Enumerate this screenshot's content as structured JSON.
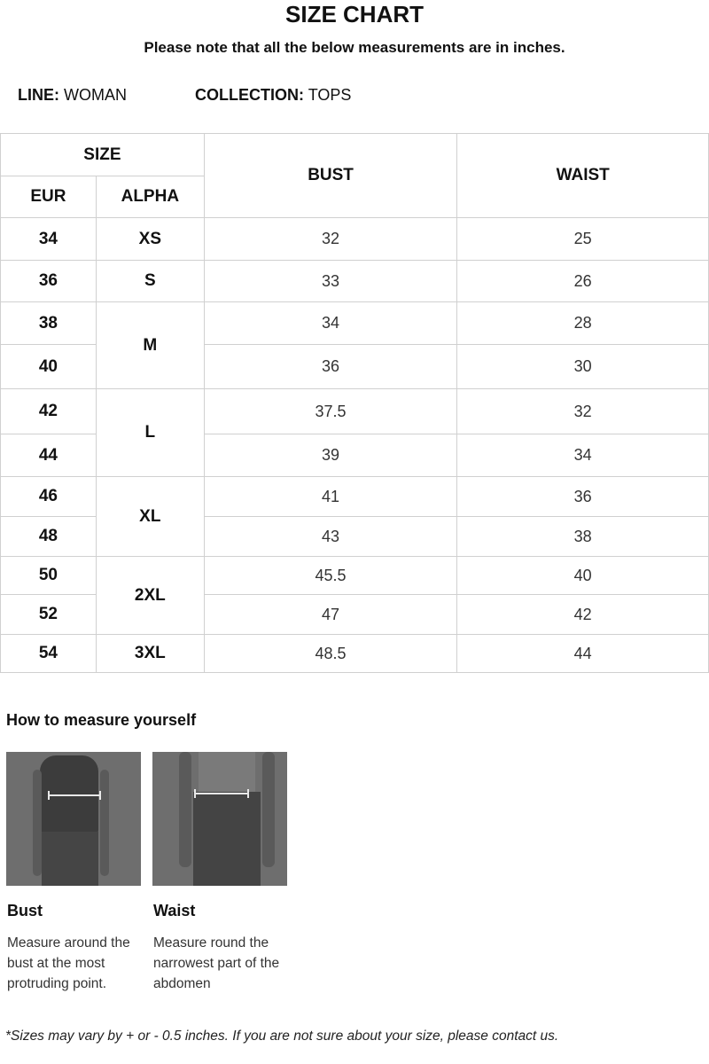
{
  "title": "SIZE CHART",
  "note": "Please note that all the below measurements are in inches.",
  "meta": {
    "line_label": "LINE:",
    "line_value": "WOMAN",
    "collection_label": "COLLECTION:",
    "collection_value": "TOPS"
  },
  "table": {
    "headers": {
      "size": "SIZE",
      "eur": "EUR",
      "alpha": "ALPHA",
      "bust": "BUST",
      "waist": "WAIST"
    },
    "rows": [
      {
        "eur": "34",
        "alpha": "XS",
        "bust": "32",
        "waist": "25"
      },
      {
        "eur": "36",
        "alpha": "S",
        "bust": "33",
        "waist": "26"
      },
      {
        "eur": "38",
        "alpha": "M",
        "bust": "34",
        "waist": "28"
      },
      {
        "eur": "40",
        "alpha": "M",
        "bust": "36",
        "waist": "30"
      },
      {
        "eur": "42",
        "alpha": "L",
        "bust": "37.5",
        "waist": "32"
      },
      {
        "eur": "44",
        "alpha": "L",
        "bust": "39",
        "waist": "34"
      },
      {
        "eur": "46",
        "alpha": "XL",
        "bust": "41",
        "waist": "36"
      },
      {
        "eur": "48",
        "alpha": "XL",
        "bust": "43",
        "waist": "38"
      },
      {
        "eur": "50",
        "alpha": "2XL",
        "bust": "45.5",
        "waist": "40"
      },
      {
        "eur": "52",
        "alpha": "2XL",
        "bust": "47",
        "waist": "42"
      },
      {
        "eur": "54",
        "alpha": "3XL",
        "bust": "48.5",
        "waist": "44"
      }
    ]
  },
  "howto": {
    "title": "How to measure yourself",
    "items": [
      {
        "label": "Bust",
        "desc": "Measure around the bust at the most protruding point."
      },
      {
        "label": "Waist",
        "desc": "Measure round the narrowest part of the abdomen"
      }
    ]
  },
  "footnote": "*Sizes may vary by + or - 0.5 inches. If you are not sure about your size, please contact us."
}
